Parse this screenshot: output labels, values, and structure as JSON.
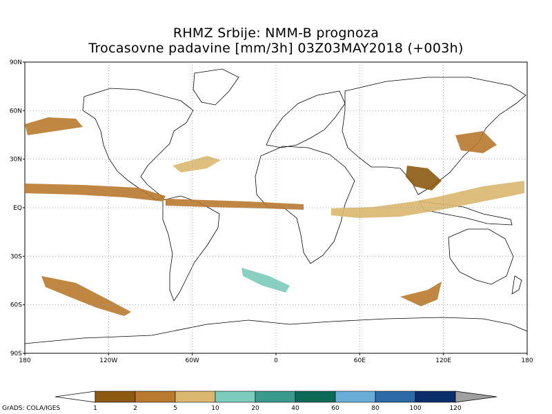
{
  "title_line1": "RHMZ Srbije: NMM-B prognoza",
  "title_line2": "Trocasovne padavine [mm/3h] 03Z03MAY2018 (+003h)",
  "map": {
    "lon_range": [
      -180,
      180
    ],
    "lat_range": [
      -90,
      90
    ],
    "lat_ticks": [
      {
        "value": 90,
        "label": "90N"
      },
      {
        "value": 60,
        "label": "60N"
      },
      {
        "value": 30,
        "label": "30N"
      },
      {
        "value": 0,
        "label": "EQ"
      },
      {
        "value": -30,
        "label": "30S"
      },
      {
        "value": -60,
        "label": "60S"
      },
      {
        "value": -90,
        "label": "90S"
      }
    ],
    "lon_ticks": [
      {
        "value": -180,
        "label": "180"
      },
      {
        "value": -120,
        "label": "120W"
      },
      {
        "value": -60,
        "label": "60W"
      },
      {
        "value": 0,
        "label": "0"
      },
      {
        "value": 60,
        "label": "60E"
      },
      {
        "value": 120,
        "label": "120E"
      },
      {
        "value": 180,
        "label": "180"
      }
    ],
    "grid": "dotted"
  },
  "colorbar": {
    "levels": [
      "1",
      "2",
      "5",
      "10",
      "20",
      "40",
      "60",
      "80",
      "100",
      "120"
    ],
    "colors": [
      "#8c5a10",
      "#b87a2e",
      "#dbb870",
      "#7ccbbc",
      "#3a9a8e",
      "#0b6a58",
      "#6aaed8",
      "#2e6aa6",
      "#0a2f6a"
    ],
    "low_end_color": "#ffffff",
    "high_end_color": "#a0a0a0"
  },
  "credit": "GrADS: COLA/IGES"
}
